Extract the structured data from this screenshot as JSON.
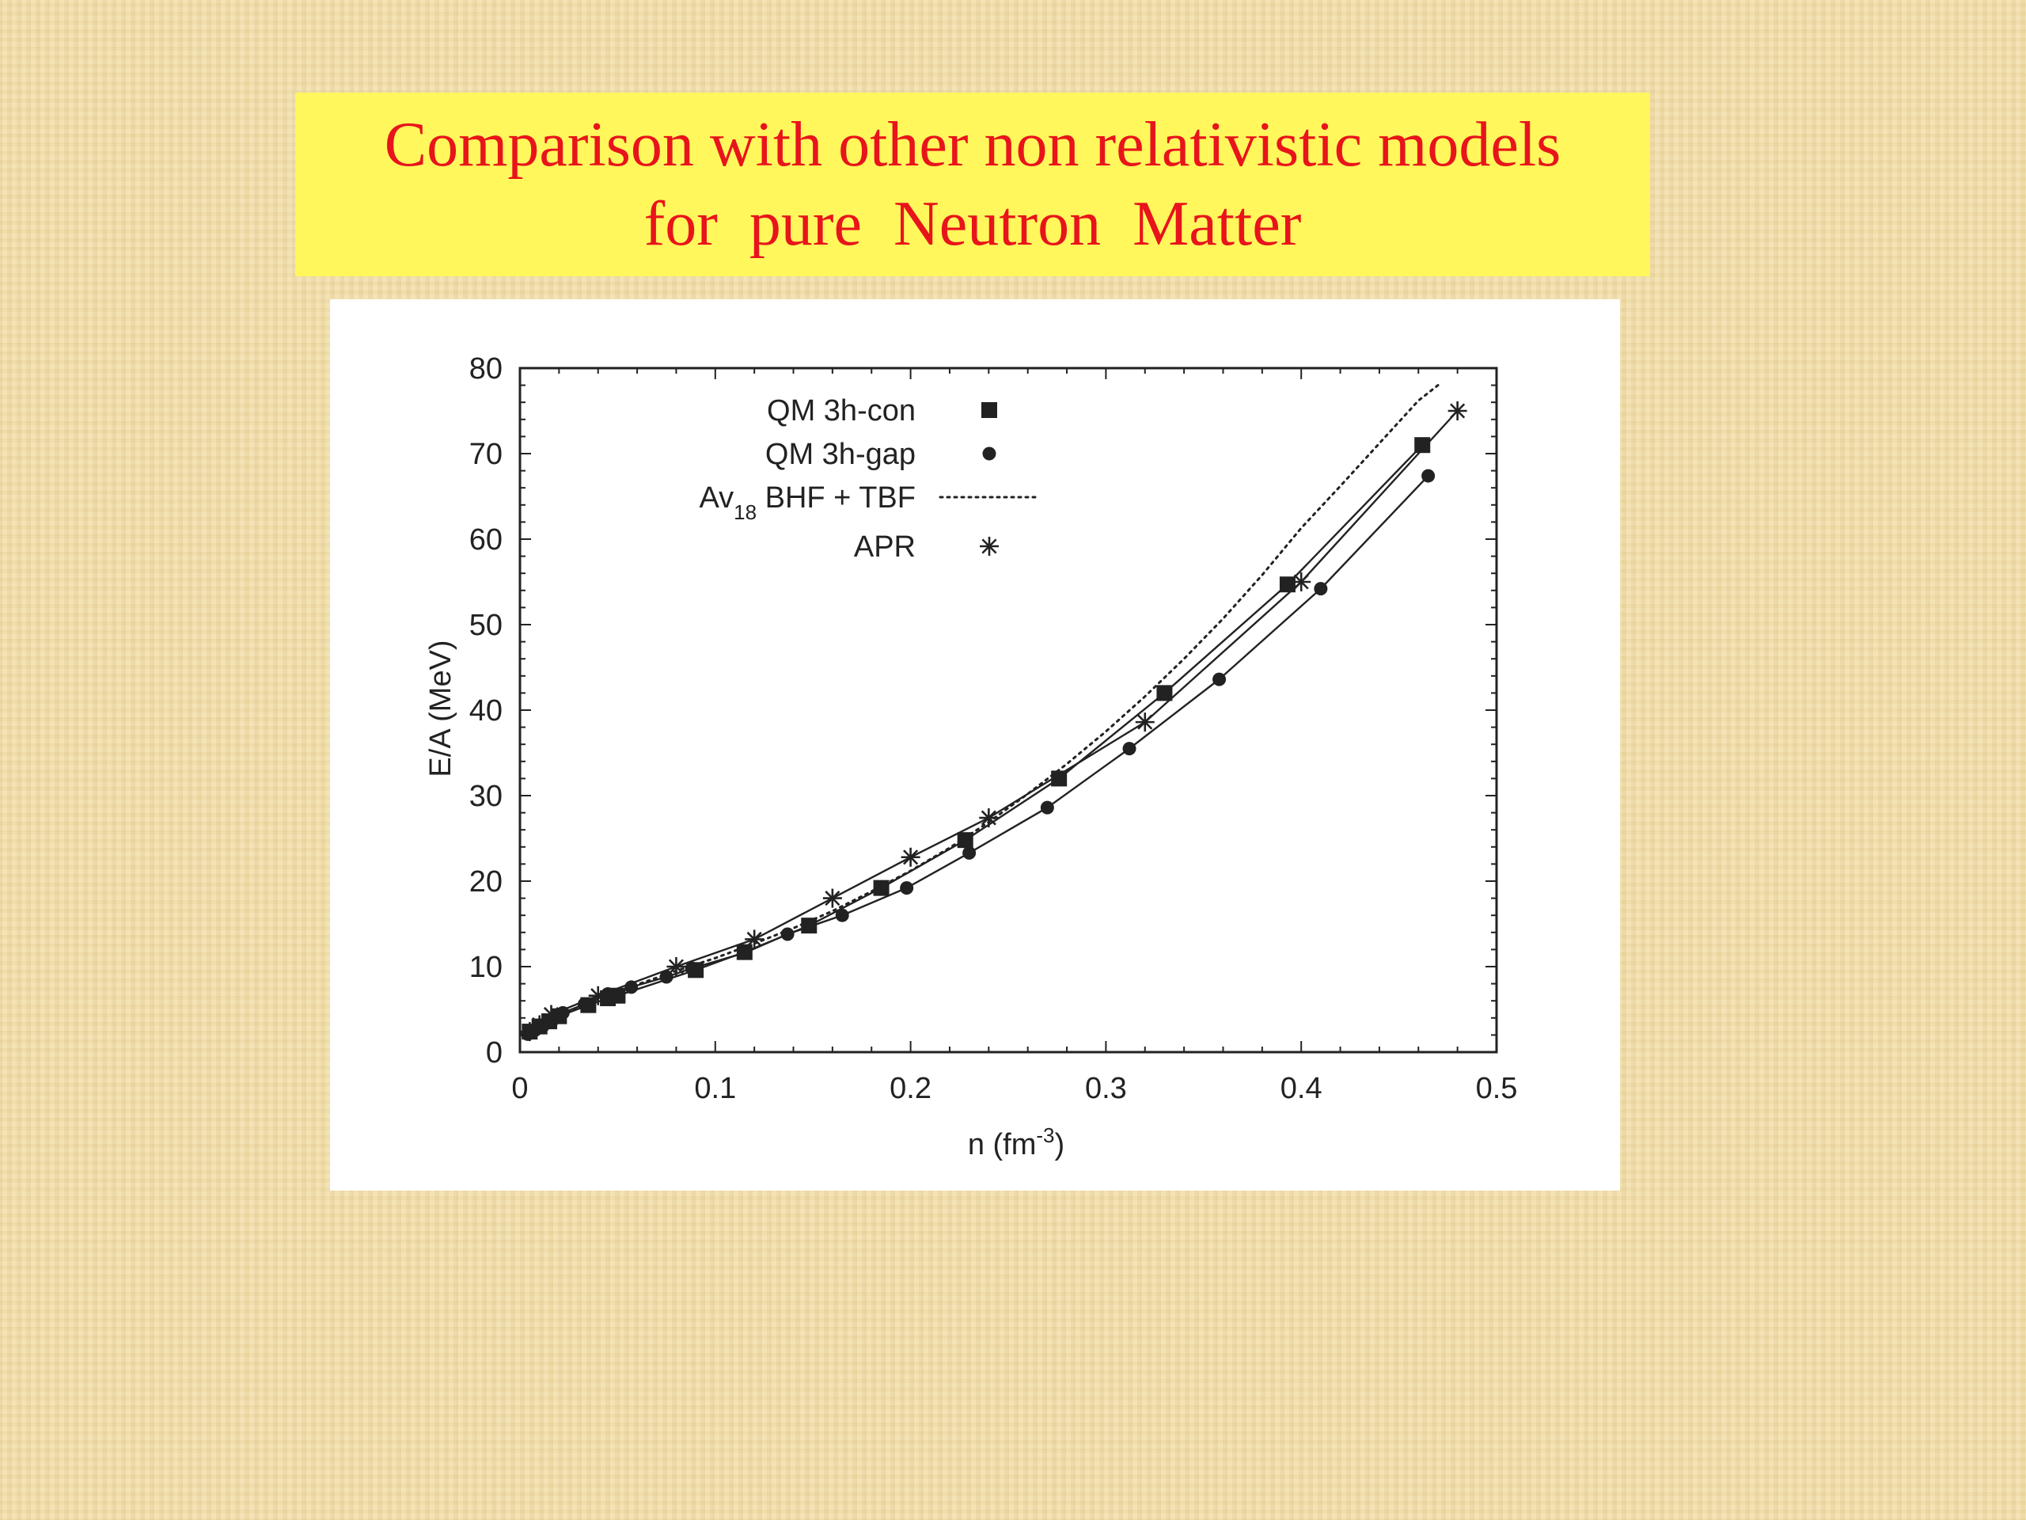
{
  "slide": {
    "title_line1": "Comparison with other non relativistic models",
    "title_line2": "for  pure  Neutron  Matter"
  },
  "colors": {
    "title_text": "#e8141b",
    "title_box": "#fff75c",
    "chart_ink": "#222222"
  },
  "chart_data": {
    "type": "line",
    "xlabel": "n (fm",
    "xlabel_sup": "-3",
    "xlabel_close": ")",
    "ylabel": "E/A (MeV)",
    "xlim": [
      0,
      0.5
    ],
    "ylim": [
      0,
      80
    ],
    "x_ticks": [
      0,
      0.1,
      0.2,
      0.3,
      0.4,
      0.5
    ],
    "x_tick_labels": [
      "0",
      "0.1",
      "0.2",
      "0.3",
      "0.4",
      "0.5"
    ],
    "y_ticks": [
      0,
      10,
      20,
      30,
      40,
      50,
      60,
      70,
      80
    ],
    "y_tick_labels": [
      "0",
      "10",
      "20",
      "30",
      "40",
      "50",
      "60",
      "70",
      "80"
    ],
    "grid": false,
    "legend_position": "top-left",
    "series": [
      {
        "name": "QM 3h-con",
        "marker": "square",
        "line": "solid",
        "x": [
          0.005,
          0.01,
          0.015,
          0.02,
          0.035,
          0.045,
          0.05,
          0.09,
          0.115,
          0.148,
          0.185,
          0.228,
          0.276,
          0.33,
          0.393,
          0.462
        ],
        "y": [
          2.4,
          3.0,
          3.6,
          4.2,
          5.5,
          6.3,
          6.6,
          9.6,
          11.7,
          14.8,
          19.2,
          24.8,
          32.0,
          42.0,
          54.7,
          71.0
        ]
      },
      {
        "name": "QM 3h-gap",
        "marker": "circle",
        "line": "solid",
        "x": [
          0.004,
          0.008,
          0.012,
          0.017,
          0.022,
          0.033,
          0.045,
          0.057,
          0.075,
          0.088,
          0.115,
          0.137,
          0.165,
          0.198,
          0.23,
          0.27,
          0.312,
          0.358,
          0.41,
          0.465
        ],
        "y": [
          2.1,
          2.6,
          3.1,
          3.8,
          4.6,
          5.6,
          6.8,
          7.6,
          8.8,
          9.8,
          11.6,
          13.8,
          16.0,
          19.2,
          23.3,
          28.6,
          35.5,
          43.6,
          54.2,
          67.4
        ]
      },
      {
        "name": "BHF + TBF",
        "name_prefix": "Av",
        "name_sub": "18",
        "marker": "none",
        "line": "dotted",
        "x": [
          0.005,
          0.02,
          0.04,
          0.06,
          0.08,
          0.1,
          0.12,
          0.14,
          0.16,
          0.18,
          0.2,
          0.22,
          0.24,
          0.26,
          0.28,
          0.3,
          0.32,
          0.34,
          0.36,
          0.38,
          0.4,
          0.42,
          0.44,
          0.46,
          0.47
        ],
        "y": [
          2.4,
          4.3,
          6.2,
          7.9,
          9.5,
          11.0,
          12.7,
          14.5,
          16.5,
          18.8,
          21.2,
          23.9,
          26.9,
          30.2,
          33.7,
          37.5,
          41.6,
          46.0,
          50.7,
          55.8,
          61.3,
          66.2,
          71.2,
          76.2,
          78.0
        ]
      },
      {
        "name": "APR",
        "marker": "star",
        "line": "solid",
        "x": [
          0.005,
          0.01,
          0.016,
          0.04,
          0.08,
          0.12,
          0.16,
          0.2,
          0.24,
          0.32,
          0.4,
          0.48
        ],
        "y": [
          2.4,
          3.2,
          4.4,
          6.6,
          10.0,
          13.2,
          18.0,
          22.8,
          27.4,
          38.6,
          55.0,
          75.0
        ]
      }
    ]
  }
}
